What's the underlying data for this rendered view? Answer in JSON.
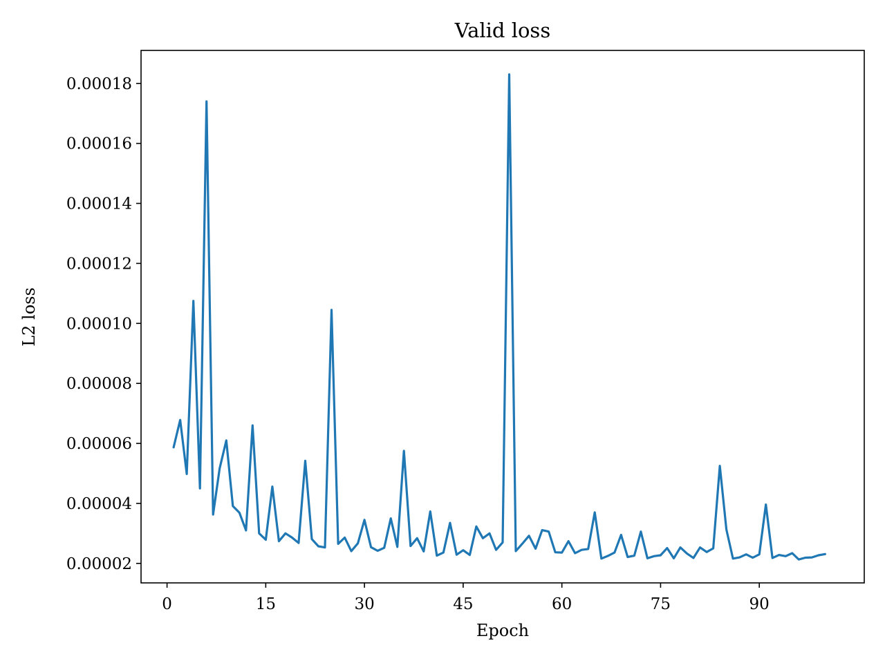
{
  "chart_data": {
    "type": "line",
    "title": "Valid loss",
    "xlabel": "Epoch",
    "ylabel": "L2 loss",
    "xlim": [
      -3.95,
      105.95
    ],
    "ylim": [
      1.35e-05,
      0.000191
    ],
    "x_ticks": [
      0,
      15,
      30,
      45,
      60,
      75,
      90
    ],
    "x_tick_labels": [
      "0",
      "15",
      "30",
      "45",
      "60",
      "75",
      "90"
    ],
    "y_ticks": [
      2e-05,
      4e-05,
      6e-05,
      8e-05,
      0.0001,
      0.00012,
      0.00014,
      0.00016,
      0.00018
    ],
    "y_tick_labels": [
      "0.00002",
      "0.00004",
      "0.00006",
      "0.00008",
      "0.00010",
      "0.00012",
      "0.00014",
      "0.00016",
      "0.00018"
    ],
    "grid": false,
    "series": [
      {
        "color": "#1f77b4",
        "x": [
          1,
          2,
          3,
          4,
          5,
          6,
          7,
          8,
          9,
          10,
          11,
          12,
          13,
          14,
          15,
          16,
          17,
          18,
          19,
          20,
          21,
          22,
          23,
          24,
          25,
          26,
          27,
          28,
          29,
          30,
          31,
          32,
          33,
          34,
          35,
          36,
          37,
          38,
          39,
          40,
          41,
          42,
          43,
          44,
          45,
          46,
          47,
          48,
          49,
          50,
          51,
          52,
          53,
          54,
          55,
          56,
          57,
          58,
          59,
          60,
          61,
          62,
          63,
          64,
          65,
          66,
          67,
          68,
          69,
          70,
          71,
          72,
          73,
          74,
          75,
          76,
          77,
          78,
          79,
          80,
          81,
          82,
          83,
          84,
          85,
          86,
          87,
          88,
          89,
          90,
          91,
          92,
          93,
          94,
          95,
          96,
          97,
          98,
          99,
          100
        ],
        "y": [
          5.87e-05,
          6.78e-05,
          4.98e-05,
          0.0001075,
          4.5e-05,
          0.000174,
          3.63e-05,
          5.17e-05,
          6.1e-05,
          3.91e-05,
          3.69e-05,
          3.1e-05,
          6.6e-05,
          3e-05,
          2.79e-05,
          4.56e-05,
          2.74e-05,
          3e-05,
          2.86e-05,
          2.68e-05,
          5.42e-05,
          2.81e-05,
          2.57e-05,
          2.53e-05,
          0.0001045,
          2.65e-05,
          2.86e-05,
          2.41e-05,
          2.67e-05,
          3.45e-05,
          2.54e-05,
          2.42e-05,
          2.52e-05,
          3.5e-05,
          2.55e-05,
          5.75e-05,
          2.58e-05,
          2.84e-05,
          2.4e-05,
          3.73e-05,
          2.26e-05,
          2.36e-05,
          3.35e-05,
          2.29e-05,
          2.44e-05,
          2.28e-05,
          3.23e-05,
          2.84e-05,
          3e-05,
          2.45e-05,
          2.7e-05,
          0.000183,
          2.41e-05,
          2.66e-05,
          2.92e-05,
          2.49e-05,
          3.11e-05,
          3.06e-05,
          2.37e-05,
          2.36e-05,
          2.74e-05,
          2.34e-05,
          2.45e-05,
          2.48e-05,
          3.7e-05,
          2.16e-05,
          2.25e-05,
          2.36e-05,
          2.95e-05,
          2.21e-05,
          2.26e-05,
          3.06e-05,
          2.17e-05,
          2.24e-05,
          2.27e-05,
          2.51e-05,
          2.17e-05,
          2.53e-05,
          2.33e-05,
          2.18e-05,
          2.53e-05,
          2.38e-05,
          2.5e-05,
          5.25e-05,
          3.13e-05,
          2.16e-05,
          2.2e-05,
          2.3e-05,
          2.19e-05,
          2.3e-05,
          3.96e-05,
          2.18e-05,
          2.28e-05,
          2.24e-05,
          2.34e-05,
          2.13e-05,
          2.19e-05,
          2.2e-05,
          2.27e-05,
          2.31e-05
        ]
      }
    ]
  }
}
